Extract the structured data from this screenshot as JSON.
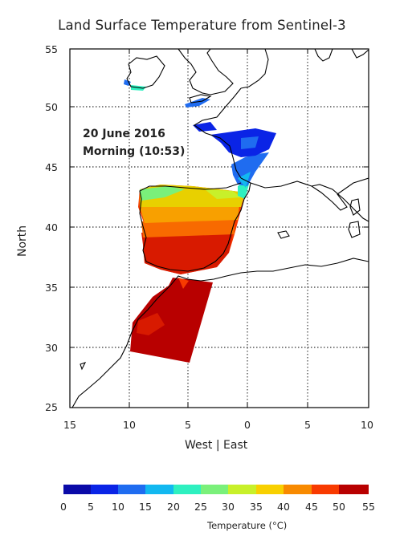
{
  "title": "Land Surface Temperature from Sentinel-3",
  "annotation": {
    "date": "20 June 2016",
    "time": "Morning (10:53)"
  },
  "axes": {
    "ylabel": "North",
    "xlabel": "West | East",
    "lat_ticks": [
      "55",
      "50",
      "45",
      "40",
      "35",
      "30",
      "25"
    ],
    "lon_ticks": [
      "15",
      "10",
      "5",
      "0",
      "5",
      "10"
    ]
  },
  "colorbar": {
    "title": "Temperature (°C)",
    "ticks": [
      "0",
      "5",
      "10",
      "15",
      "20",
      "25",
      "30",
      "35",
      "40",
      "45",
      "50",
      "55"
    ],
    "colors": [
      "#0a0aa8",
      "#0a24e6",
      "#1f6cf0",
      "#12b8f0",
      "#2ef0c0",
      "#7af07a",
      "#c8f02a",
      "#f8d000",
      "#f88a00",
      "#f83a00",
      "#b80000"
    ]
  }
}
